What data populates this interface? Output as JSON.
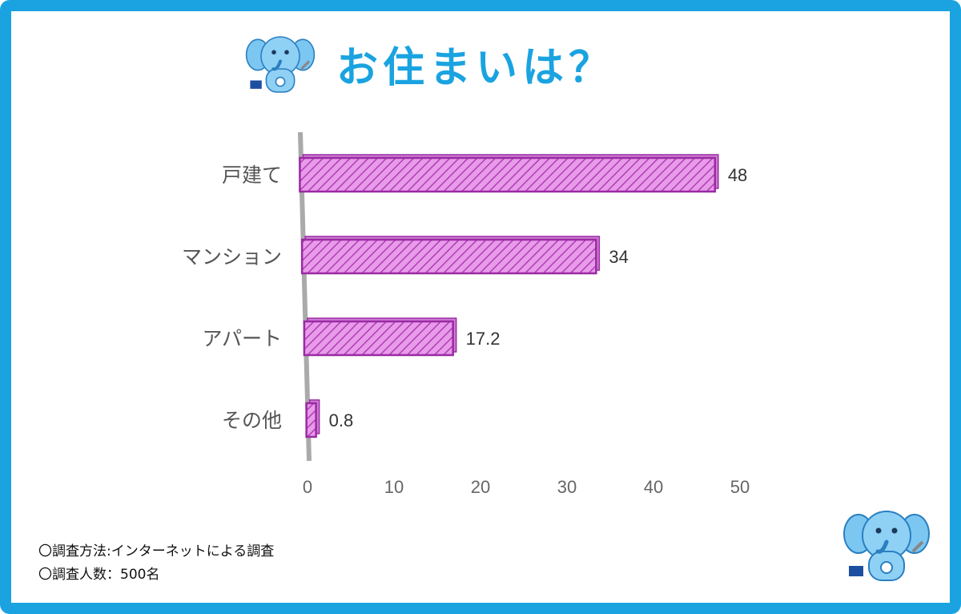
{
  "title": "お住まいは？",
  "notes": {
    "method": "〇調査方法:インターネットによる調査",
    "respondents": "〇調査人数：500名"
  },
  "colors": {
    "frame": "#1aa3e0",
    "title": "#1aa3e0",
    "bar_fill": "#e79be9",
    "bar_hatch": "#b33cb8",
    "bar_border": "#9a2aa3"
  },
  "mascot_icons": [
    "elephant-mascot-icon",
    "elephant-mascot-icon"
  ],
  "chart_data": {
    "type": "bar",
    "orientation": "horizontal",
    "categories": [
      "戸建て",
      "マンション",
      "アパート",
      "その他"
    ],
    "values": [
      48,
      34,
      17.2,
      0.8
    ],
    "value_labels": [
      "48",
      "34",
      "17.2",
      "0.8"
    ],
    "xlim": [
      0,
      50
    ],
    "ticks": [
      0,
      10,
      20,
      30,
      40,
      50
    ],
    "title": "",
    "xlabel": "",
    "ylabel": "",
    "grid": false,
    "legend": "none"
  }
}
